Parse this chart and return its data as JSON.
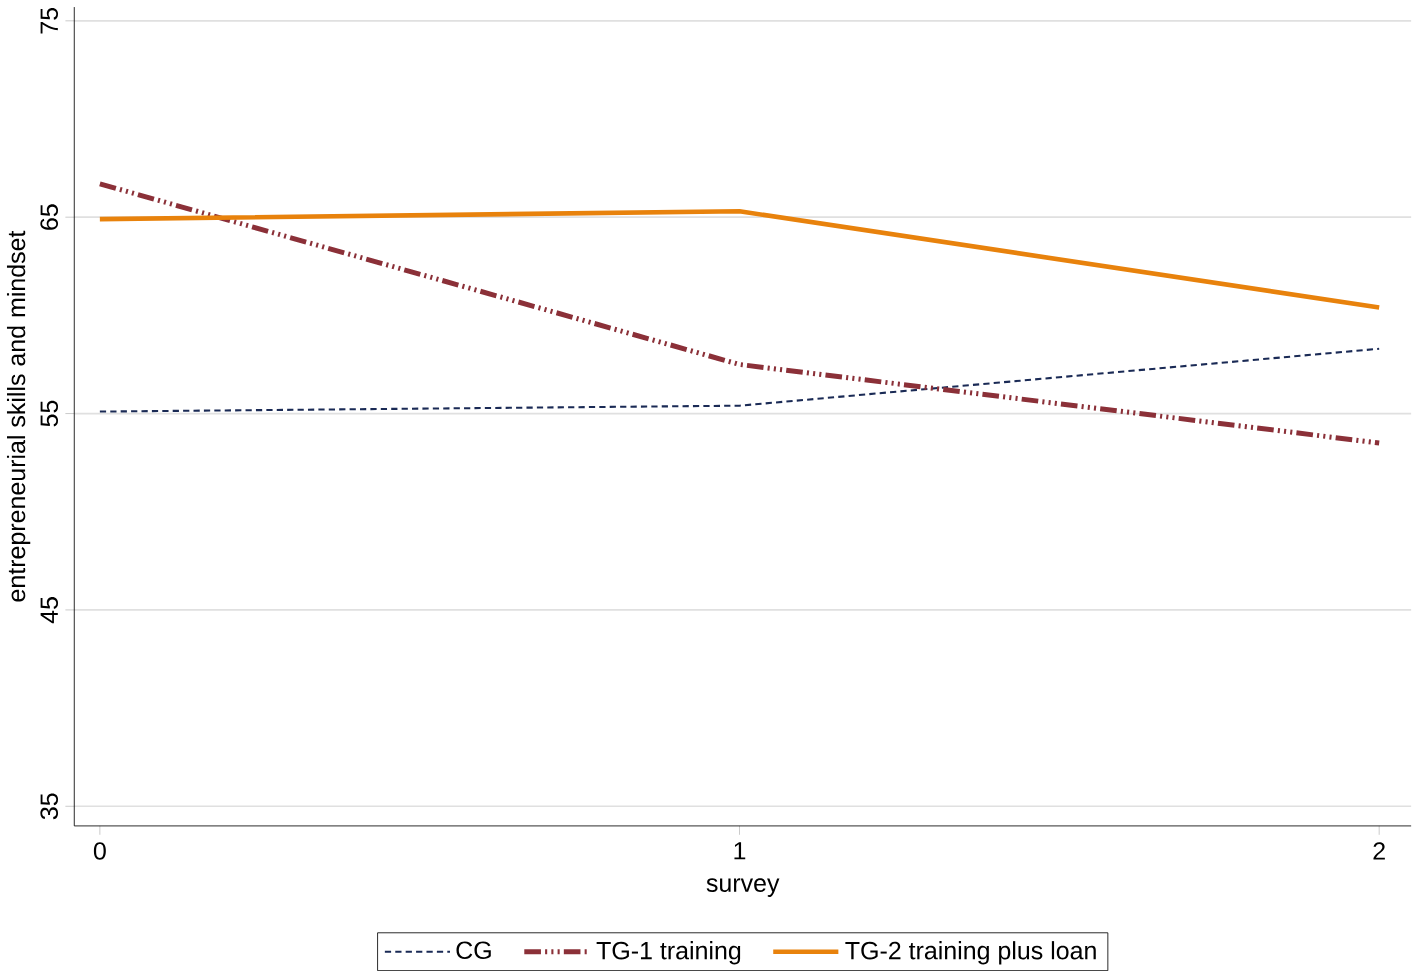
{
  "chart_data": {
    "type": "line",
    "xlabel": "survey",
    "ylabel": "entrepreneurial skills and mindset",
    "x": [
      0,
      1,
      2
    ],
    "series": [
      {
        "name": "CG",
        "color": "#1a2a55",
        "line_style": "dashed",
        "values": [
          55.1,
          55.4,
          58.3
        ]
      },
      {
        "name": "TG-1 training",
        "color": "#8b3038",
        "line_style": "dashdotdot",
        "values": [
          66.7,
          57.5,
          53.5
        ]
      },
      {
        "name": "TG-2 training plus loan",
        "color": "#e8820c",
        "line_style": "solid",
        "values": [
          64.9,
          65.3,
          60.4
        ]
      }
    ],
    "xlim": [
      -0.04,
      2.05
    ],
    "ylim": [
      34,
      75.7
    ],
    "xticks": [
      0,
      1,
      2
    ],
    "yticks": [
      35,
      45,
      55,
      65,
      75
    ],
    "grid": "y",
    "legend": "bottom"
  }
}
